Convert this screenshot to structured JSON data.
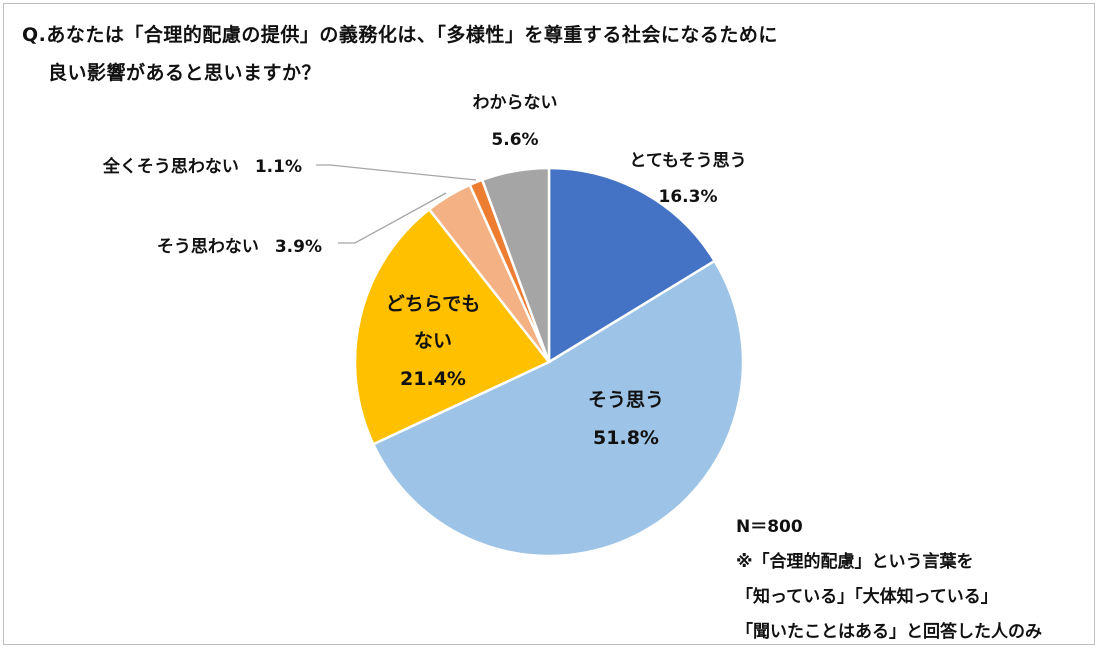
{
  "title": {
    "line1": "Q.あなたは「合理的配慮の提供」の義務化は、「多様性」を尊重する社会になるために",
    "line2": "良い影響があると思いますか？"
  },
  "chart_data": {
    "type": "pie",
    "title": "Q.あなたは「合理的配慮の提供」の義務化は、「多様性」を尊重する社会になるために良い影響があると思いますか？",
    "slices": [
      {
        "label": "とてもそう思う",
        "value": 16.3,
        "value_label": "16.3%",
        "color": "#4472C4"
      },
      {
        "label": "そう思う",
        "value": 51.8,
        "value_label": "51.8%",
        "color": "#9DC3E6"
      },
      {
        "label": "どちらでもない",
        "label_lines": [
          "どちらでも",
          "ない"
        ],
        "value": 21.4,
        "value_label": "21.4%",
        "color": "#FFC000"
      },
      {
        "label": "そう思わない",
        "value": 3.9,
        "value_label": "3.9%",
        "color": "#F4B183"
      },
      {
        "label": "全くそう思わない",
        "value": 1.1,
        "value_label": "1.1%",
        "color": "#ED7D31"
      },
      {
        "label": "わからない",
        "value": 5.6,
        "value_label": "5.6%",
        "color": "#A5A5A5"
      }
    ],
    "start_angle": "12 o'clock",
    "direction": "clockwise",
    "legend": "none"
  },
  "note": {
    "n": "N＝800",
    "line1": "※「合理的配慮」という言葉を",
    "line2": "「知っている」「大体知っている」",
    "line3": "「聞いたことはある」と回答した人のみ"
  }
}
